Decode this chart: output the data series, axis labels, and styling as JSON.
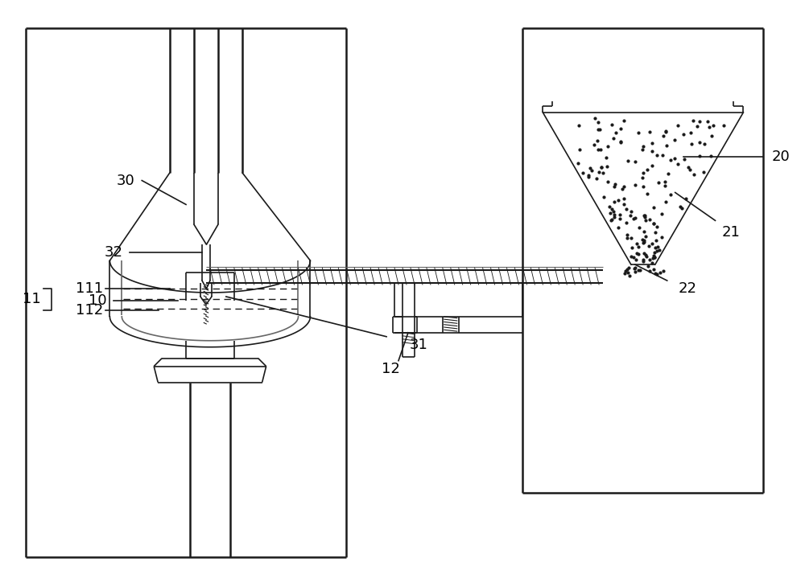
{
  "bg_color": "#ffffff",
  "line_color": "#1a1a1a",
  "gray_color": "#666666",
  "label_fontsize": 13,
  "lw_main": 1.8,
  "lw_thin": 1.2,
  "lw_med": 1.5
}
